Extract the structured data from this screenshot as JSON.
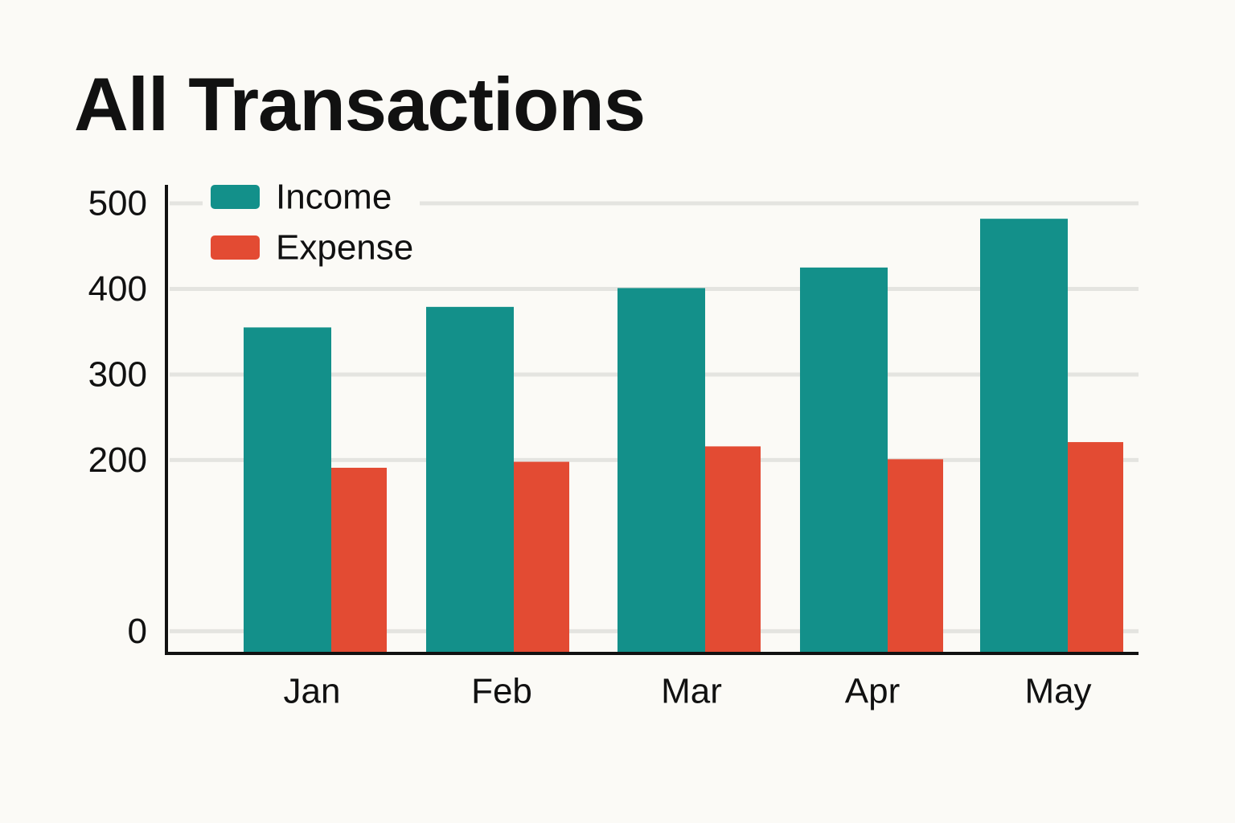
{
  "colors": {
    "background": "#fbfaf6",
    "income": "#13908a",
    "expense": "#e34b33",
    "grid": "#e4e4e0",
    "axis": "#111111",
    "text": "#111111"
  },
  "chart_data": {
    "type": "bar",
    "title": "All Transactions",
    "categories": [
      "Jan",
      "Feb",
      "Mar",
      "Apr",
      "May"
    ],
    "series": [
      {
        "name": "Income",
        "color": "#13908a",
        "values": [
          355,
          379,
          401,
          425,
          482
        ]
      },
      {
        "name": "Expense",
        "color": "#e34b33",
        "values": [
          191,
          198,
          216,
          201,
          221
        ]
      }
    ],
    "yticks": [
      0,
      200,
      300,
      400,
      500
    ],
    "ylim": [
      -25,
      500
    ],
    "xlabel": "",
    "ylabel": "",
    "grid": true,
    "legend_position": "top-left"
  }
}
